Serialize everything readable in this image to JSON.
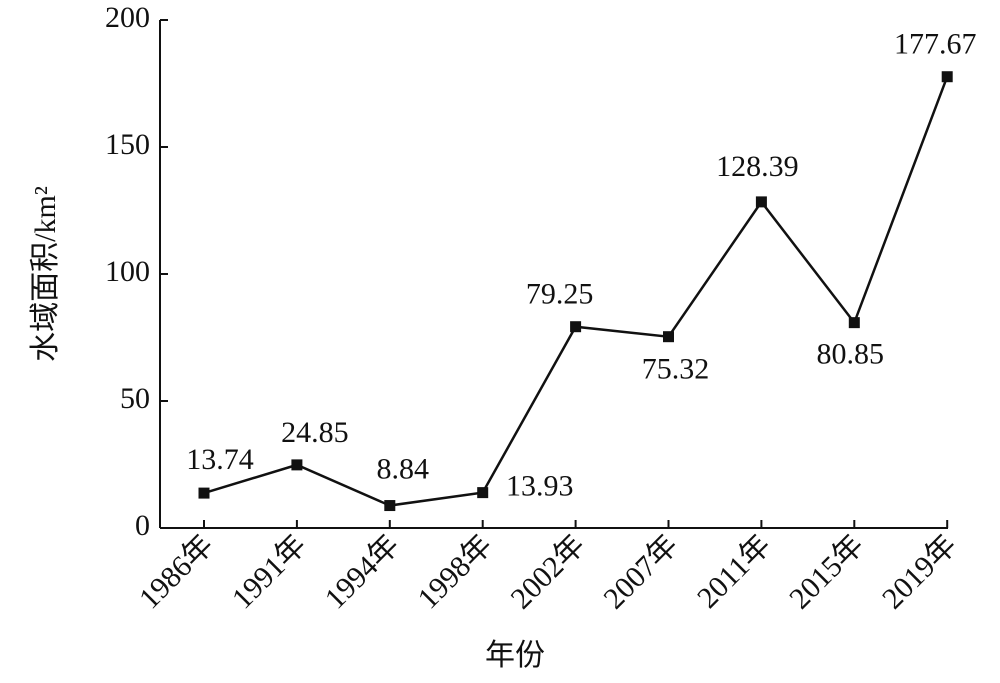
{
  "chart_data": {
    "type": "line",
    "categories": [
      "1986年",
      "1991年",
      "1994年",
      "1998年",
      "2002年",
      "2007年",
      "2011年",
      "2015年",
      "2019年"
    ],
    "series": [
      {
        "name": "水域面积",
        "color": "#111111",
        "values": [
          13.74,
          24.85,
          8.84,
          13.93,
          79.25,
          75.32,
          128.39,
          80.85,
          177.67
        ]
      }
    ],
    "ylim": [
      0,
      200
    ],
    "yticks": [
      0,
      50,
      100,
      150,
      200
    ],
    "y_label": "水域面积/km²",
    "x_label": "年份"
  }
}
